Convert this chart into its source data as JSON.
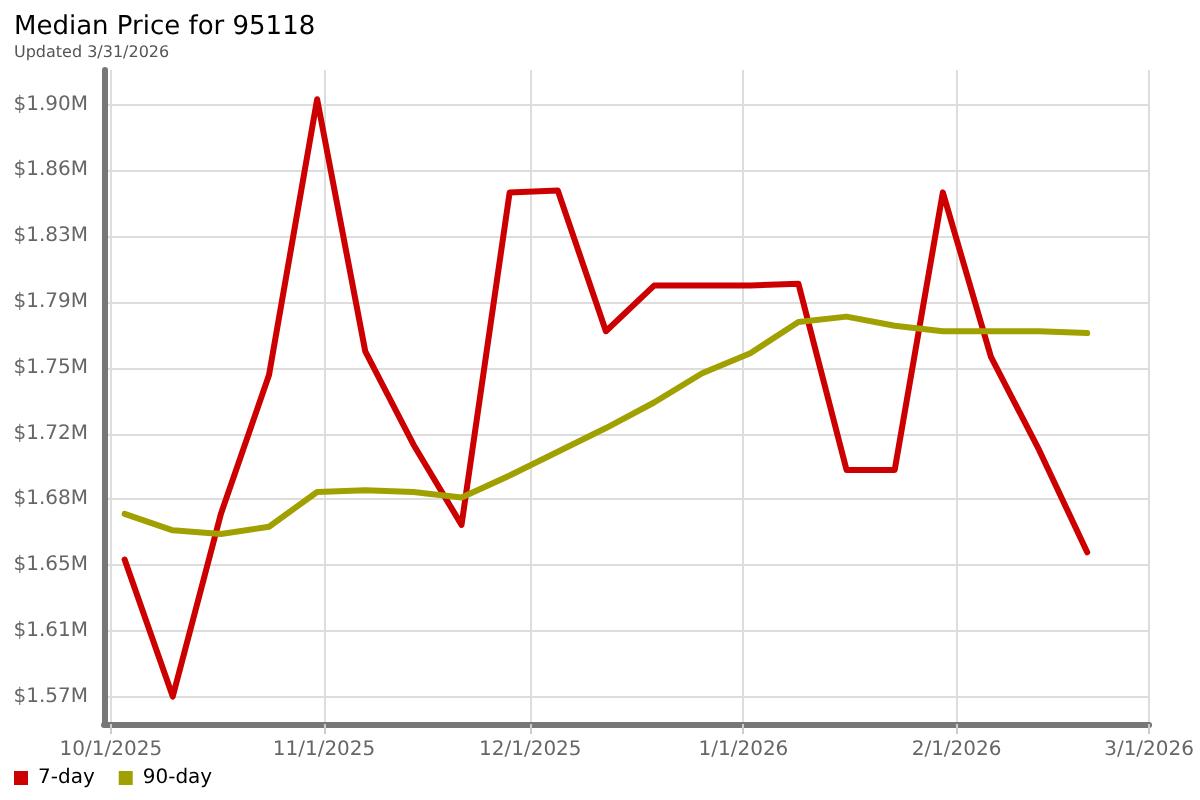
{
  "chart_data": {
    "type": "line",
    "title": "Median Price for 95118",
    "subtitle": "Updated 3/31/2026",
    "x": [
      "2025-10-03",
      "2025-10-10",
      "2025-10-17",
      "2025-10-24",
      "2025-10-31",
      "2025-11-07",
      "2025-11-14",
      "2025-11-21",
      "2025-11-28",
      "2025-12-05",
      "2025-12-12",
      "2025-12-19",
      "2025-12-26",
      "2026-01-02",
      "2026-01-09",
      "2026-01-16",
      "2026-01-23",
      "2026-01-30",
      "2026-02-06",
      "2026-02-13",
      "2026-02-20"
    ],
    "series": [
      {
        "name": "7-day",
        "color": "#cc0000",
        "values": [
          1.649,
          1.574,
          1.674,
          1.75,
          1.901,
          1.763,
          1.712,
          1.668,
          1.85,
          1.851,
          1.774,
          1.799,
          1.799,
          1.799,
          1.8,
          1.698,
          1.698,
          1.85,
          1.76,
          1.709,
          1.653
        ]
      },
      {
        "name": "90-day",
        "color": "#a0a000",
        "values": [
          1.674,
          1.665,
          1.663,
          1.667,
          1.686,
          1.687,
          1.686,
          1.683,
          1.695,
          1.708,
          1.721,
          1.735,
          1.751,
          1.762,
          1.779,
          1.782,
          1.777,
          1.774,
          1.774,
          1.774,
          1.773
        ]
      }
    ],
    "xlim": [
      "2025-09-30",
      "2026-03-01"
    ],
    "xticks": [
      {
        "value": "2025-10-01",
        "label": "10/1/2025"
      },
      {
        "value": "2025-11-01",
        "label": "11/1/2025"
      },
      {
        "value": "2025-12-01",
        "label": "12/1/2025"
      },
      {
        "value": "2026-01-01",
        "label": "1/1/2026"
      },
      {
        "value": "2026-02-01",
        "label": "2/1/2026"
      },
      {
        "value": "2026-03-01",
        "label": "3/1/2026"
      }
    ],
    "ylim": [
      1.559,
      1.917
    ],
    "yticks": [
      {
        "value": 1.574,
        "label": "$1.57M"
      },
      {
        "value": 1.61,
        "label": "$1.61M"
      },
      {
        "value": 1.646,
        "label": "$1.65M"
      },
      {
        "value": 1.682,
        "label": "$1.68M"
      },
      {
        "value": 1.718,
        "label": "$1.72M"
      },
      {
        "value": 1.754,
        "label": "$1.75M"
      },
      {
        "value": 1.79,
        "label": "$1.79M"
      },
      {
        "value": 1.826,
        "label": "$1.83M"
      },
      {
        "value": 1.862,
        "label": "$1.86M"
      },
      {
        "value": 1.898,
        "label": "$1.90M"
      }
    ],
    "grid": true,
    "legend": "bottom left",
    "marker": "none",
    "line_style": "solid"
  }
}
